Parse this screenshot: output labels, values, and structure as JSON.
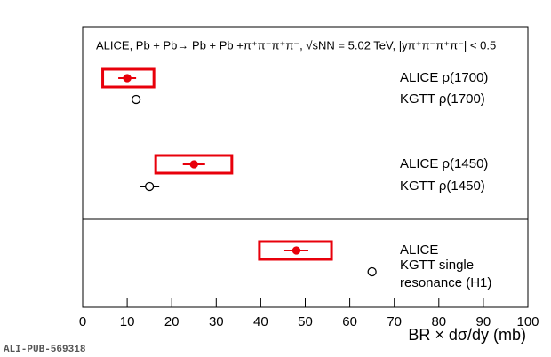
{
  "chart_data": {
    "type": "errorbar",
    "title": "ALICE,  Pb + Pb→ Pb + Pb +π⁺π⁻π⁺π⁻, √sNN = 5.02 TeV, |yπ⁺π⁻π⁺π⁻| < 0.5",
    "x_label": "BR × dσ/dy (mb)",
    "footer": "ALI-PUB-569318",
    "xlim": [
      0,
      100
    ],
    "xticks": [
      0,
      10,
      20,
      30,
      40,
      50,
      60,
      70,
      80,
      90,
      100
    ],
    "points": [
      {
        "label": [
          "ALICE ρ(1700)"
        ],
        "value": 10,
        "err": 2,
        "sys_low": 4.5,
        "sys_high": 16,
        "color": "#e8000b",
        "filled": true
      },
      {
        "label": [
          "KGTT ρ(1700)"
        ],
        "value": 12,
        "err": null,
        "sys_low": null,
        "sys_high": null,
        "color": "#000000",
        "filled": false
      },
      {
        "label": [
          "ALICE ρ(1450)"
        ],
        "value": 25,
        "err": 2.5,
        "sys_low": 16.4,
        "sys_high": 33.5,
        "color": "#e8000b",
        "filled": true
      },
      {
        "label": [
          "KGTT ρ(1450)"
        ],
        "value": 15,
        "err": 2.2,
        "sys_low": null,
        "sys_high": null,
        "color": "#000000",
        "filled": false
      },
      {
        "label": [
          "ALICE"
        ],
        "value": 48,
        "err": 2.7,
        "sys_low": 39.7,
        "sys_high": 55.9,
        "color": "#e8000b",
        "filled": true
      },
      {
        "label": [
          "KGTT single",
          "resonance (H1)"
        ],
        "value": 65,
        "err": null,
        "sys_low": null,
        "sys_high": null,
        "color": "#000000",
        "filled": false
      }
    ]
  }
}
